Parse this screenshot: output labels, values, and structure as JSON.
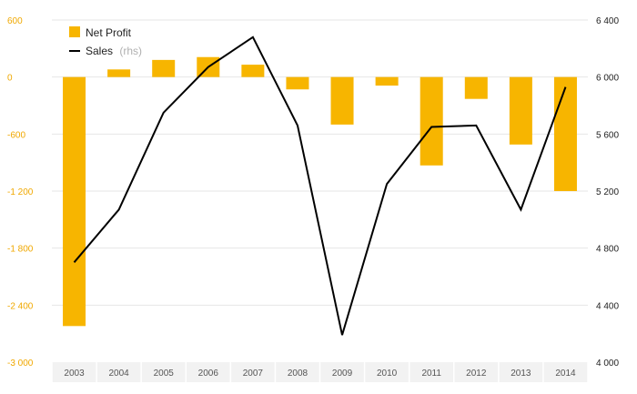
{
  "chart_data": {
    "type": "bar+line",
    "categories": [
      "2003",
      "2004",
      "2005",
      "2006",
      "2007",
      "2008",
      "2009",
      "2010",
      "2011",
      "2012",
      "2013",
      "2014"
    ],
    "series": [
      {
        "name": "Net Profit",
        "type": "bar",
        "axis": "left",
        "color": "#f7b500",
        "values": [
          -2620,
          80,
          180,
          210,
          130,
          -130,
          -500,
          -90,
          -930,
          -230,
          -710,
          -1200
        ]
      },
      {
        "name": "Sales",
        "name_suffix": "(rhs)",
        "type": "line",
        "axis": "right",
        "color": "#000000",
        "values": [
          4700,
          5070,
          5750,
          6070,
          6280,
          5660,
          4190,
          5250,
          5650,
          5660,
          5070,
          5930
        ]
      }
    ],
    "y_left": {
      "range": [
        -3000,
        600
      ],
      "ticks": [
        600,
        0,
        -600,
        -1200,
        -1800,
        -2400,
        -3000
      ],
      "tick_labels": [
        "600",
        "0",
        "-600",
        "-1 200",
        "-1 800",
        "-2 400",
        "-3 000"
      ],
      "color": "#f0a800"
    },
    "y_right": {
      "range": [
        4000,
        6400
      ],
      "ticks": [
        6400,
        6000,
        5600,
        5200,
        4800,
        4400,
        4000
      ],
      "tick_labels": [
        "6 400",
        "6 000",
        "5 600",
        "5 200",
        "4 800",
        "4 400",
        "4 000"
      ]
    },
    "grid": true,
    "legend_position": "top-left",
    "gridline_color": "#e6e6e6",
    "axis_band_color": "#f2f2f2"
  }
}
